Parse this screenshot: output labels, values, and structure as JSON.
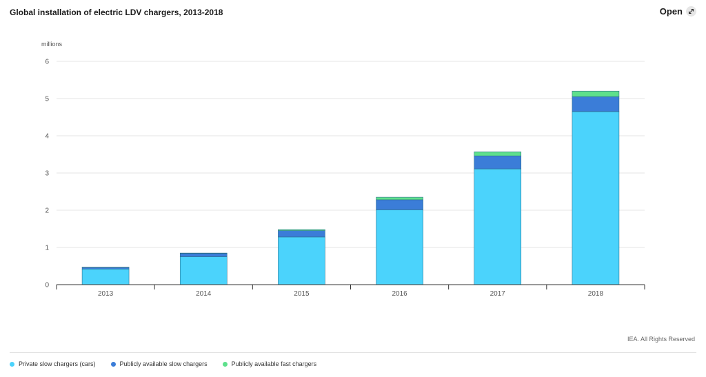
{
  "header": {
    "title": "Global installation of electric LDV chargers, 2013-2018",
    "open_label": "Open",
    "open_icon": "expand-icon"
  },
  "footer": {
    "copyright": "IEA. All Rights Reserved"
  },
  "chart_data": {
    "type": "bar",
    "stacked": true,
    "title": "Global installation of electric LDV chargers, 2013-2018",
    "ylabel": "millions",
    "xlabel": "",
    "ylim": [
      0,
      6
    ],
    "yticks": [
      "0",
      "1",
      "2",
      "3",
      "4",
      "5",
      "6"
    ],
    "grid": true,
    "legend_position": "bottom-left",
    "categories": [
      "2013",
      "2014",
      "2015",
      "2016",
      "2017",
      "2018"
    ],
    "series": [
      {
        "name": "Private slow chargers (cars)",
        "color": "#4bd3fc",
        "values": [
          0.42,
          0.75,
          1.28,
          2.01,
          3.11,
          4.65
        ]
      },
      {
        "name": "Publicly available slow chargers",
        "color": "#3b7dd8",
        "values": [
          0.04,
          0.09,
          0.17,
          0.27,
          0.35,
          0.4
        ]
      },
      {
        "name": "Publicly available fast chargers",
        "color": "#5ee08c",
        "values": [
          0.01,
          0.01,
          0.03,
          0.07,
          0.11,
          0.15
        ]
      }
    ]
  }
}
